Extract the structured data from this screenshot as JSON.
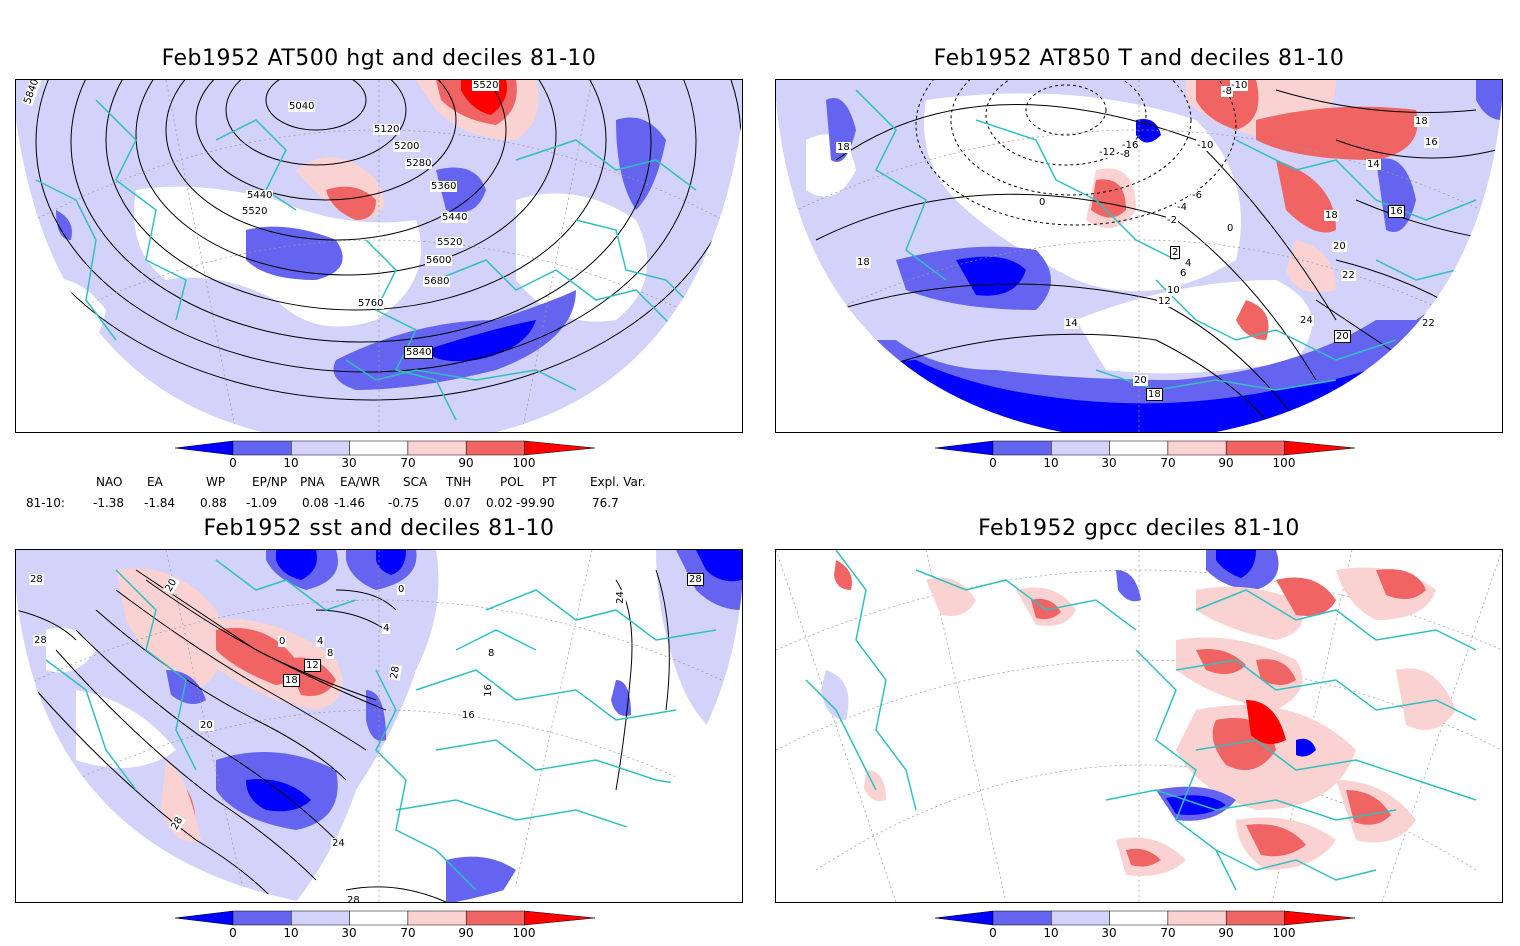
{
  "panels": [
    {
      "title": "Feb1952 AT500 hgt and deciles 81-10",
      "contour_labels": [
        "5840",
        "5040",
        "5120",
        "5200",
        "5280",
        "5360",
        "5440",
        "5520",
        "5440",
        "5520",
        "5600",
        "5680",
        "5760",
        "5840",
        "5520"
      ]
    },
    {
      "title": "Feb1952 AT850 T and deciles 81-10",
      "contour_labels": [
        "-10",
        "-8",
        "-10",
        "-12",
        "-16",
        "-8",
        "-6",
        "-4",
        "-2",
        "0",
        "0",
        "2",
        "4",
        "6",
        "10",
        "12",
        "14",
        "16",
        "18",
        "18",
        "14",
        "16",
        "18",
        "20",
        "22",
        "24",
        "22",
        "20",
        "20",
        "18",
        "18"
      ]
    },
    {
      "title": "Feb1952 sst and deciles 81-10",
      "contour_labels": [
        "28",
        "28",
        "20",
        "0",
        "4",
        "8",
        "12",
        "18",
        "20",
        "24",
        "28",
        "28",
        "28",
        "24",
        "8",
        "16",
        "16",
        "28",
        "4",
        "0"
      ]
    },
    {
      "title": "Feb1952 gpcc deciles 81-10",
      "contour_labels": []
    }
  ],
  "colorbar": {
    "ticks": [
      "0",
      "10",
      "30",
      "70",
      "90",
      "100"
    ],
    "colors": [
      "#0000ff",
      "#6464f0",
      "#d2d2fa",
      "#ffffff",
      "#fad2d2",
      "#f06464",
      "#ff0000"
    ]
  },
  "indices": {
    "row_label": "81-10:",
    "columns": [
      {
        "name": "NAO",
        "value": "-1.38"
      },
      {
        "name": "EA",
        "value": "-1.84"
      },
      {
        "name": "WP",
        "value": "0.88"
      },
      {
        "name": "EP/NP",
        "value": "-1.09"
      },
      {
        "name": "PNA",
        "value": "0.08"
      },
      {
        "name": "EA/WR",
        "value": "-1.46"
      },
      {
        "name": "SCA",
        "value": "-0.75"
      },
      {
        "name": "TNH",
        "value": "0.07"
      },
      {
        "name": "POL",
        "value": "0.02"
      },
      {
        "name": "PT",
        "value": "-99.90"
      },
      {
        "name": "Expl. Var.",
        "value": "76.7"
      }
    ]
  },
  "colors": {
    "coast": "#30c0c0",
    "contour": "#000000"
  }
}
